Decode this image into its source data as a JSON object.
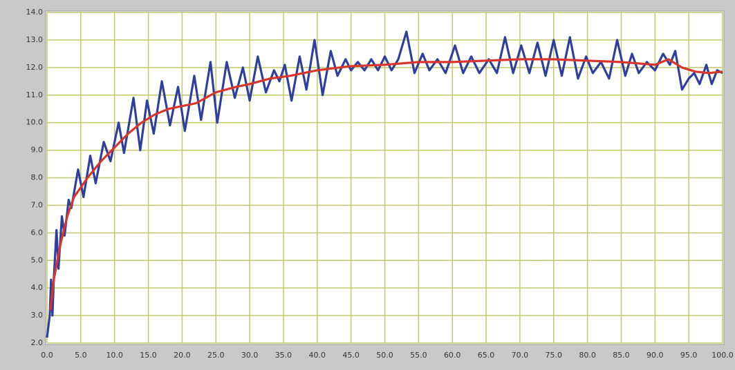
{
  "chart_data": {
    "type": "line",
    "xlim": [
      0,
      100
    ],
    "ylim": [
      2,
      14
    ],
    "grid": true,
    "xticks": [
      {
        "value": 0,
        "label": "0.0"
      },
      {
        "value": 5,
        "label": "5.0"
      },
      {
        "value": 10,
        "label": "10.0"
      },
      {
        "value": 15,
        "label": "15.0"
      },
      {
        "value": 20,
        "label": "20.0"
      },
      {
        "value": 25,
        "label": "25.0"
      },
      {
        "value": 30,
        "label": "30.0"
      },
      {
        "value": 35,
        "label": "35.0"
      },
      {
        "value": 40,
        "label": "40.0"
      },
      {
        "value": 45,
        "label": "45.0"
      },
      {
        "value": 50,
        "label": "50.0"
      },
      {
        "value": 55,
        "label": "55.0"
      },
      {
        "value": 60,
        "label": "60.0"
      },
      {
        "value": 65,
        "label": "65.0"
      },
      {
        "value": 70,
        "label": "70.0"
      },
      {
        "value": 75,
        "label": "75.0"
      },
      {
        "value": 80,
        "label": "80.0"
      },
      {
        "value": 85,
        "label": "85.0"
      },
      {
        "value": 90,
        "label": "90.0"
      },
      {
        "value": 95,
        "label": "95.0"
      },
      {
        "value": 100,
        "label": "100.0"
      }
    ],
    "yticks": [
      {
        "value": 2,
        "label": "2.0"
      },
      {
        "value": 3,
        "label": "3.0"
      },
      {
        "value": 4,
        "label": "4.0"
      },
      {
        "value": 5,
        "label": "5.0"
      },
      {
        "value": 6,
        "label": "6.0"
      },
      {
        "value": 7,
        "label": "7.0"
      },
      {
        "value": 8,
        "label": "8.0"
      },
      {
        "value": 9,
        "label": "9.0"
      },
      {
        "value": 10,
        "label": "10.0"
      },
      {
        "value": 11,
        "label": "11.0"
      },
      {
        "value": 12,
        "label": "12.0"
      },
      {
        "value": 13,
        "label": "13.0"
      },
      {
        "value": 14,
        "label": "14.0"
      }
    ],
    "series": [
      {
        "color": "#2e3f9e",
        "x": [
          0,
          0.4,
          0.6,
          0.8,
          1.0,
          1.4,
          1.7,
          2.2,
          2.6,
          3.2,
          3.6,
          4.6,
          5.4,
          6.4,
          7.2,
          8.4,
          9.4,
          10.6,
          11.4,
          12.8,
          13.8,
          14.8,
          15.8,
          17.0,
          18.2,
          19.4,
          20.4,
          21.8,
          22.8,
          24.2,
          25.2,
          26.6,
          27.8,
          29.0,
          30.0,
          31.2,
          32.4,
          33.6,
          34.4,
          35.2,
          36.2,
          37.4,
          38.4,
          39.6,
          40.8,
          42.0,
          43.0,
          44.2,
          45.0,
          46.0,
          47.0,
          48.0,
          49.0,
          50.0,
          51.0,
          52.0,
          53.2,
          54.4,
          55.6,
          56.6,
          57.8,
          59.0,
          60.4,
          61.6,
          62.8,
          64.0,
          65.4,
          66.6,
          67.8,
          69.0,
          70.2,
          71.4,
          72.6,
          73.8,
          75.0,
          76.2,
          77.4,
          78.6,
          79.8,
          80.8,
          82.0,
          83.2,
          84.4,
          85.6,
          86.6,
          87.6,
          88.8,
          90.0,
          91.2,
          92.2,
          93.0,
          94.0,
          95.0,
          95.8,
          96.6,
          97.6,
          98.4,
          99.2,
          100
        ],
        "values": [
          2.2,
          3.0,
          4.3,
          3.0,
          4.3,
          6.1,
          4.7,
          6.6,
          5.9,
          7.2,
          6.9,
          8.3,
          7.3,
          8.8,
          7.8,
          9.3,
          8.6,
          10.0,
          8.9,
          10.9,
          9.0,
          10.8,
          9.6,
          11.5,
          9.9,
          11.3,
          9.7,
          11.7,
          10.1,
          12.2,
          10.0,
          12.2,
          10.9,
          12.0,
          10.8,
          12.4,
          11.1,
          11.9,
          11.5,
          12.1,
          10.8,
          12.4,
          11.2,
          13.0,
          11.0,
          12.6,
          11.7,
          12.3,
          11.9,
          12.2,
          11.9,
          12.3,
          11.9,
          12.4,
          11.9,
          12.3,
          13.3,
          11.8,
          12.5,
          11.9,
          12.3,
          11.8,
          12.8,
          11.8,
          12.4,
          11.8,
          12.3,
          11.8,
          13.1,
          11.8,
          12.8,
          11.8,
          12.9,
          11.7,
          13.0,
          11.7,
          13.1,
          11.6,
          12.4,
          11.8,
          12.2,
          11.6,
          13.0,
          11.7,
          12.5,
          11.8,
          12.2,
          11.9,
          12.5,
          12.1,
          12.6,
          11.2,
          11.6,
          11.8,
          11.4,
          12.1,
          11.4,
          11.9,
          11.8
        ]
      },
      {
        "color": "#d9362b",
        "x": [
          0.5,
          1,
          2,
          3,
          4,
          6,
          8,
          10,
          12,
          14,
          16,
          18,
          20,
          22,
          25,
          28,
          30,
          33,
          36,
          40,
          45,
          50,
          55,
          60,
          65,
          70,
          75,
          80,
          85,
          90,
          92,
          94,
          96,
          98,
          100
        ],
        "values": [
          3.2,
          4.3,
          5.6,
          6.6,
          7.3,
          8.0,
          8.6,
          9.1,
          9.6,
          10.0,
          10.3,
          10.5,
          10.6,
          10.7,
          11.1,
          11.3,
          11.4,
          11.6,
          11.7,
          11.9,
          12.05,
          12.1,
          12.2,
          12.2,
          12.25,
          12.3,
          12.3,
          12.25,
          12.2,
          12.1,
          12.3,
          12.0,
          11.85,
          11.8,
          11.85
        ]
      }
    ]
  }
}
